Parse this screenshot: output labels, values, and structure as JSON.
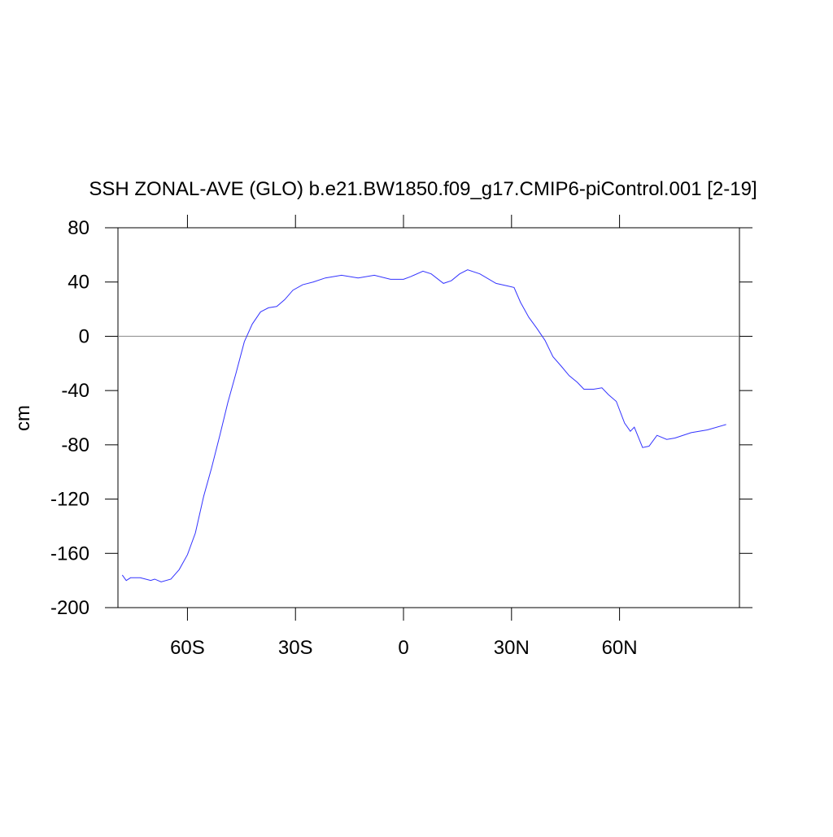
{
  "chart_data": {
    "type": "line",
    "title": "SSH ZONAL-AVE (GLO) b.e21.BW1850.f09_g17.CMIP6-piControl.001 [2-19]",
    "ylabel": "cm",
    "xlim": [
      -79.3,
      93.3
    ],
    "xticks": [
      {
        "value": -60,
        "label": "60S"
      },
      {
        "value": -30,
        "label": "30S"
      },
      0,
      {
        "value": 30,
        "label": "30N"
      },
      {
        "value": 60,
        "label": "60N"
      }
    ],
    "ylim": [
      -200,
      80
    ],
    "yticks": [
      -200,
      -160,
      -120,
      -80,
      -40,
      0,
      40,
      80
    ],
    "reference_line": 0,
    "x": [
      -78.1,
      -77,
      -75.8,
      -73.1,
      -70.2,
      -69.1,
      -67.3,
      -64.6,
      -62.3,
      -60,
      -57.8,
      -55.5,
      -53.3,
      -51,
      -48.8,
      -46.5,
      -44.2,
      -42,
      -39.7,
      -37.5,
      -35.2,
      -33,
      -30.7,
      -28,
      -25.1,
      -21.7,
      -17.2,
      -12.6,
      -8.1,
      -3.6,
      0,
      2,
      5.4,
      7.7,
      11.1,
      13.3,
      15.6,
      17.8,
      21.2,
      25.7,
      29.1,
      30.7,
      32.5,
      34.8,
      37,
      39.3,
      41.5,
      43.8,
      46,
      48.3,
      50.1,
      52.8,
      55.1,
      56.9,
      59.1,
      61.4,
      63,
      64.1,
      66.4,
      68.2,
      70.4,
      73.1,
      75.4,
      79.9,
      84.4,
      89.6
    ],
    "series": [
      {
        "color": "#3333ff",
        "values": [
          -176,
          -180,
          -178,
          -178,
          -180,
          -179,
          -181,
          -179,
          -172,
          -161,
          -145,
          -118,
          -97,
          -73,
          -49,
          -27,
          -4,
          9,
          18,
          21,
          22,
          27,
          34,
          38,
          40,
          43,
          45,
          43,
          45,
          42,
          42,
          44,
          48,
          46,
          39,
          41,
          46,
          49,
          46,
          39,
          37,
          36,
          25,
          14,
          6,
          -3,
          -15,
          -22,
          -29,
          -34,
          -39,
          -39,
          -38,
          -43,
          -48,
          -64,
          -70,
          -67,
          -82,
          -81,
          -73,
          -76,
          -75,
          -71,
          -69,
          -65
        ]
      }
    ]
  }
}
